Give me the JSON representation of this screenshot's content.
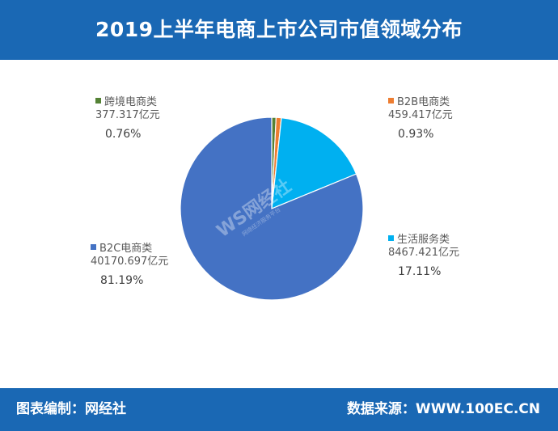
{
  "header": {
    "title": "2019上半年电商上市公司市值领域分布"
  },
  "footer": {
    "left": "图表编制：网经社",
    "right": "数据来源：WWW.100EC.CN"
  },
  "watermark": {
    "logo": "WS网经社",
    "tagline": "网络经济服务平台"
  },
  "chart_data": {
    "type": "pie",
    "title": "2019上半年电商上市公司市值领域分布",
    "unit": "亿元",
    "slices": [
      {
        "name": "跨境电商类",
        "value": 377.317,
        "value_label": "377.317亿元",
        "percent_label": "0.76%",
        "color": "#548235"
      },
      {
        "name": "B2B电商类",
        "value": 459.417,
        "value_label": "459.417亿元",
        "percent_label": "0.93%",
        "color": "#ed7d31"
      },
      {
        "name": "生活服务类",
        "value": 8467.421,
        "value_label": "8467.421亿元",
        "percent_label": "17.11%",
        "color": "#00b0f0"
      },
      {
        "name": "B2C电商类",
        "value": 40170.697,
        "value_label": "40170.697亿元",
        "percent_label": "81.19%",
        "color": "#4472c4"
      }
    ]
  }
}
